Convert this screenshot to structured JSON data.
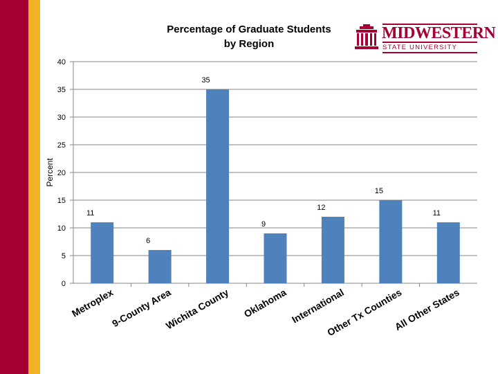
{
  "branding": {
    "logo_word": "MIDWESTERN",
    "logo_sub": "STATE UNIVERSITY",
    "maroon": "#a50034",
    "gold": "#f0b323"
  },
  "chart_data": {
    "type": "bar",
    "title_lines": [
      "Percentage of Graduate Students",
      "by Region"
    ],
    "xlabel": "",
    "ylabel": "Percent",
    "categories": [
      "Metroplex",
      "9-County Area",
      "Wichita County",
      "Oklahoma",
      "International",
      "Other Tx Counties",
      "All Other States"
    ],
    "values": [
      11,
      6,
      35,
      9,
      12,
      15,
      11
    ],
    "ylim": [
      0,
      40
    ],
    "yticks": [
      0,
      5,
      10,
      15,
      20,
      25,
      30,
      35,
      40
    ],
    "grid": true,
    "legend": "none",
    "bar_color": "#4f81bd",
    "data_labels": true
  }
}
